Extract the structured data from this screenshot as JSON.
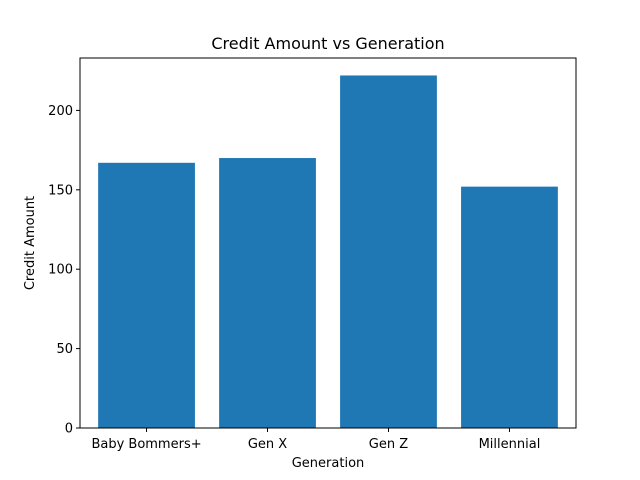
{
  "chart_data": {
    "type": "bar",
    "title": "Credit Amount vs Generation",
    "xlabel": "Generation",
    "ylabel": "Credit Amount",
    "categories": [
      "Baby Bommers+",
      "Gen X",
      "Gen Z",
      "Millennial"
    ],
    "values": [
      167,
      170,
      222,
      152
    ],
    "ylim": [
      0,
      233
    ],
    "yticks": [
      "0",
      "50",
      "100",
      "150",
      "200"
    ],
    "grid": false,
    "bar_color": "#1f77b4"
  }
}
